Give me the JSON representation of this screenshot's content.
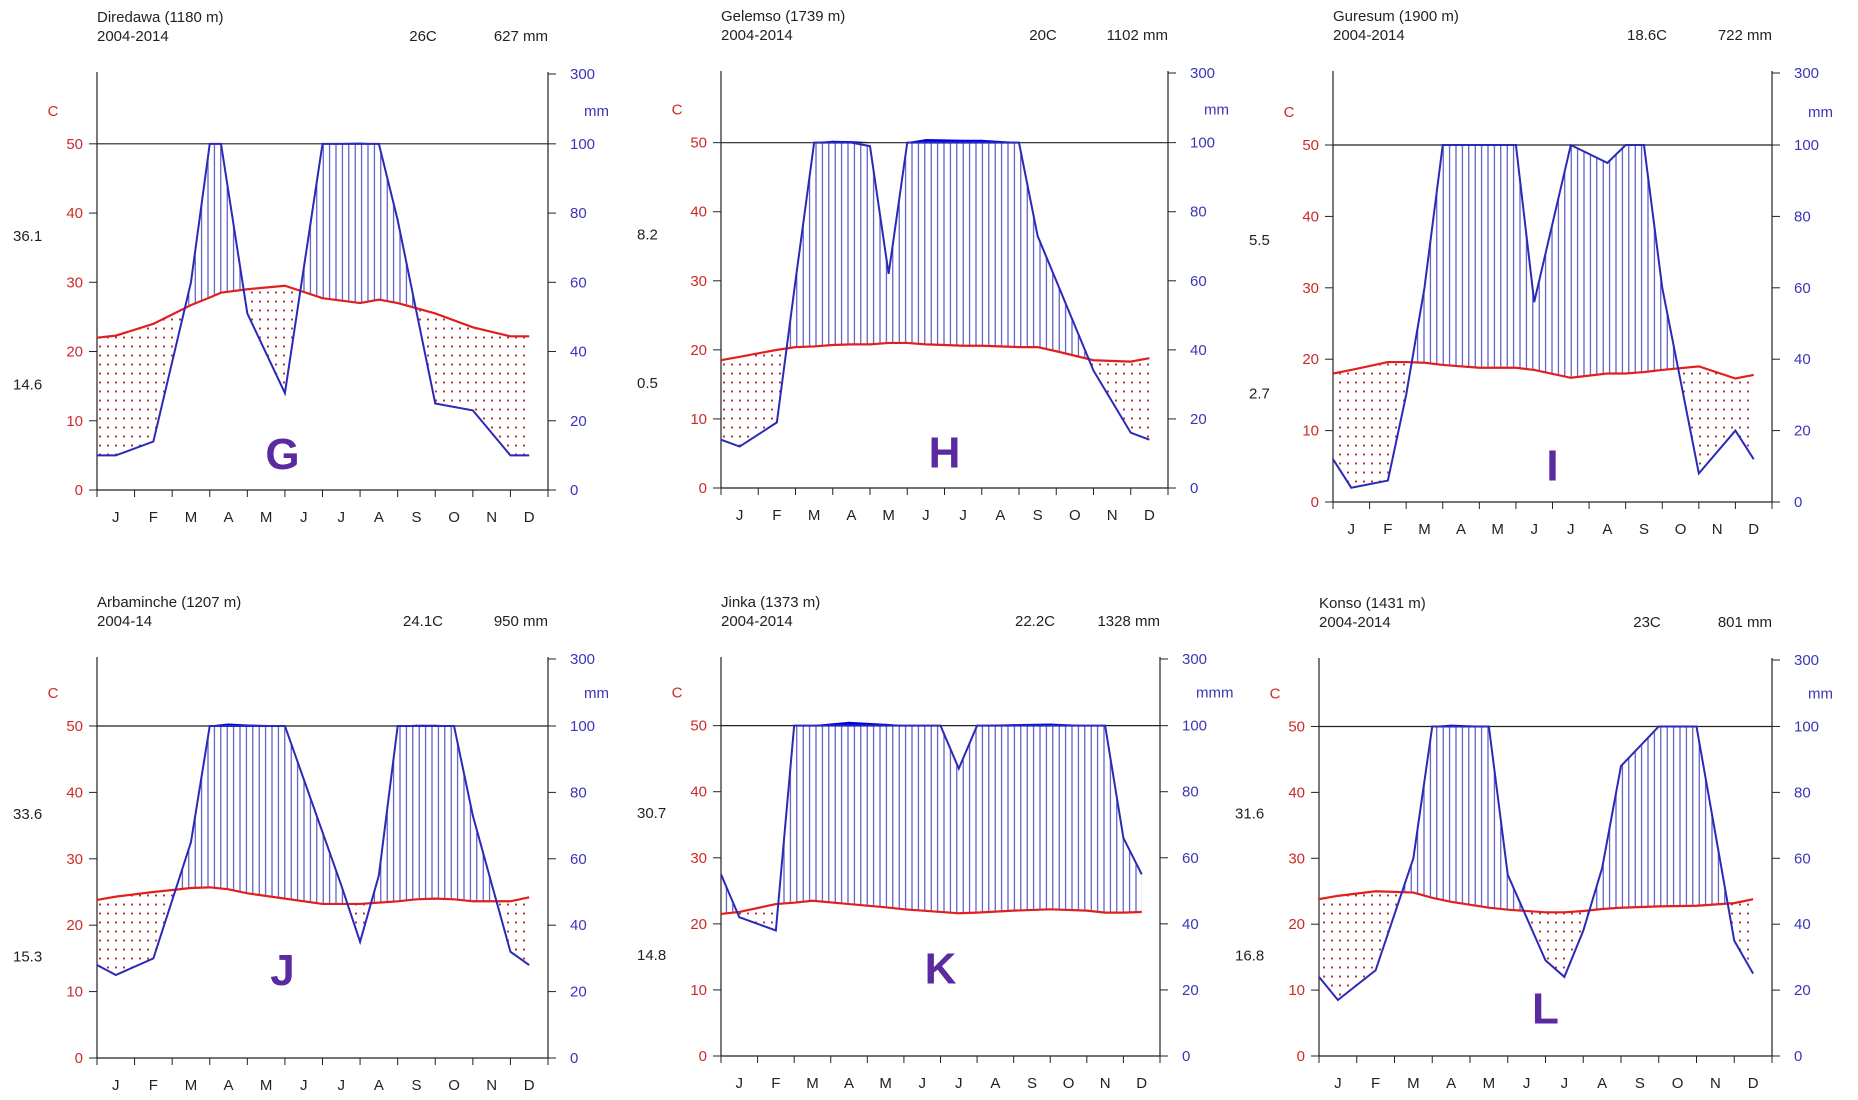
{
  "colors": {
    "temperature": "#e0201e",
    "precipitation": "#2a2ab8",
    "excess": "#0000e6",
    "dry_dots": "#b0303a",
    "wet_hatch": "#3535b0",
    "letter": "#5b2aa0"
  },
  "chart_data": [
    {
      "type": "line",
      "panel": "G",
      "station": "Diredawa  (1180 m)",
      "period": "2004-2014",
      "mean_temp": "26C",
      "annual_precip": "627 mm",
      "side_top": "36.1",
      "side_bottom": "14.6",
      "left_unit": "C",
      "right_unit": "mm",
      "left_ticks": [
        "0",
        "10",
        "20",
        "30",
        "40",
        "50"
      ],
      "right_ticks": [
        "0",
        "20",
        "40",
        "60",
        "80",
        "100",
        "300"
      ],
      "months": [
        "J",
        "F",
        "M",
        "A",
        "M",
        "J",
        "J",
        "A",
        "S",
        "O",
        "N",
        "D"
      ],
      "x": [
        0,
        0.5,
        1.5,
        2.5,
        3,
        3.3,
        4,
        5,
        6,
        7,
        7.5,
        8,
        9,
        10,
        11,
        11.5
      ],
      "temperature": [
        22,
        22.3,
        24,
        26.7,
        27.8,
        28.5,
        29,
        29.5,
        27.7,
        27,
        27.5,
        27,
        25.5,
        23.5,
        22.2,
        22.2
      ],
      "precipitation": [
        10,
        10,
        14,
        60,
        100,
        100,
        51,
        28,
        100,
        102,
        100,
        78,
        25,
        23,
        10,
        10
      ]
    },
    {
      "type": "line",
      "panel": "H",
      "station": "Gelemso  (1739 m)",
      "period": "2004-2014",
      "mean_temp": "20C",
      "annual_precip": "1102 mm",
      "side_top": "8.2",
      "side_bottom": "0.5",
      "left_unit": "C",
      "right_unit": "mm",
      "left_ticks": [
        "0",
        "10",
        "20",
        "30",
        "40",
        "50"
      ],
      "right_ticks": [
        "0",
        "20",
        "40",
        "60",
        "80",
        "100",
        "300"
      ],
      "months": [
        "J",
        "F",
        "M",
        "A",
        "M",
        "J",
        "J",
        "A",
        "S",
        "O",
        "N",
        "D"
      ],
      "x": [
        0,
        0.5,
        1.5,
        2,
        2.5,
        3,
        3.5,
        4,
        4.5,
        5,
        5.5,
        6,
        6.5,
        7,
        8,
        8.5,
        9,
        10,
        10,
        11,
        11.5
      ],
      "temperature": [
        18.5,
        19,
        20,
        20.4,
        20.5,
        20.7,
        20.8,
        20.8,
        21,
        21,
        20.8,
        20.7,
        20.6,
        20.6,
        20.4,
        20.4,
        19.8,
        18.5,
        18.5,
        18.3,
        18.8
      ],
      "precipitation": [
        14,
        12,
        19,
        60,
        100,
        104,
        103,
        99,
        62,
        100,
        109,
        108,
        107,
        107,
        100,
        73,
        60,
        34,
        34,
        16,
        14
      ]
    },
    {
      "type": "line",
      "panel": "I",
      "station": "Guresum  (1900 m)",
      "period": "2004-2014",
      "mean_temp": "18.6C",
      "annual_precip": "722 mm",
      "side_top": "5.5",
      "side_bottom": "2.7",
      "left_unit": "C",
      "right_unit": "mm",
      "left_ticks": [
        "0",
        "10",
        "20",
        "30",
        "40",
        "50"
      ],
      "right_ticks": [
        "0",
        "20",
        "40",
        "60",
        "80",
        "100",
        "300"
      ],
      "months": [
        "J",
        "F",
        "M",
        "A",
        "M",
        "J",
        "J",
        "A",
        "S",
        "O",
        "N",
        "D"
      ],
      "x": [
        0,
        0.5,
        1.5,
        2,
        2.5,
        3,
        4,
        5,
        5.5,
        6.5,
        7.5,
        8,
        8.5,
        9,
        10,
        11,
        11.5
      ],
      "temperature": [
        18,
        18.5,
        19.6,
        19.6,
        19.5,
        19.2,
        18.8,
        18.8,
        18.5,
        17.4,
        18,
        18,
        18.2,
        18.5,
        19,
        17.3,
        17.8
      ],
      "precipitation": [
        12,
        4,
        6,
        30,
        60,
        100,
        101,
        100,
        56,
        100,
        95,
        100,
        100,
        60,
        8,
        20,
        12
      ]
    },
    {
      "type": "line",
      "panel": "J",
      "station": "Arbaminche  (1207 m)",
      "period": "2004-14",
      "mean_temp": "24.1C",
      "annual_precip": "950 mm",
      "side_top": "33.6",
      "side_bottom": "15.3",
      "left_unit": "C",
      "right_unit": "mm",
      "left_ticks": [
        "0",
        "10",
        "20",
        "30",
        "40",
        "50"
      ],
      "right_ticks": [
        "0",
        "20",
        "40",
        "60",
        "80",
        "100",
        "300"
      ],
      "months": [
        "J",
        "F",
        "M",
        "A",
        "M",
        "J",
        "J",
        "A",
        "S",
        "O",
        "N",
        "D"
      ],
      "x": [
        0,
        0.5,
        1.5,
        2.5,
        3,
        3.5,
        4,
        5,
        6,
        6.5,
        7,
        7.5,
        8,
        8.5,
        9,
        9.5,
        10,
        11,
        11.5
      ],
      "temperature": [
        23.8,
        24.3,
        25,
        25.6,
        25.7,
        25.4,
        24.8,
        24,
        23.2,
        23.2,
        23.2,
        23.4,
        23.6,
        23.9,
        24,
        23.9,
        23.6,
        23.6,
        24.2
      ],
      "precipitation": [
        28,
        25,
        30,
        65,
        100,
        106,
        103,
        100,
        68,
        52,
        35,
        55,
        100,
        102,
        102,
        100,
        73,
        32,
        28
      ]
    },
    {
      "type": "line",
      "panel": "K",
      "station": "Jinka  (1373 m)",
      "period": "2004-2014",
      "mean_temp": "22.2C",
      "annual_precip": "1328 mm",
      "side_top": "30.7",
      "side_bottom": "14.8",
      "left_unit": "C",
      "right_unit": "mmm",
      "left_ticks": [
        "0",
        "10",
        "20",
        "30",
        "40",
        "50"
      ],
      "right_ticks": [
        "0",
        "20",
        "40",
        "60",
        "80",
        "100",
        "300"
      ],
      "months": [
        "J",
        "F",
        "M",
        "A",
        "M",
        "J",
        "J",
        "A",
        "S",
        "O",
        "N",
        "D"
      ],
      "x": [
        0,
        0.5,
        1.5,
        2,
        2.5,
        3.5,
        4.5,
        5,
        6,
        6.5,
        7,
        8,
        9,
        10,
        10.5,
        11,
        11.5
      ],
      "temperature": [
        21.5,
        21.8,
        23,
        23.2,
        23.5,
        23,
        22.5,
        22.2,
        21.8,
        21.6,
        21.7,
        22,
        22.2,
        22,
        21.7,
        21.7,
        21.8
      ],
      "precipitation": [
        55,
        42,
        38,
        100,
        100,
        110,
        104,
        100,
        100,
        87,
        100,
        103,
        105,
        100,
        100,
        66,
        55
      ]
    },
    {
      "type": "line",
      "panel": "L",
      "station": "Konso (1431 m)",
      "period": "2004-2014",
      "mean_temp": "23C",
      "annual_precip": "801 mm",
      "side_top": "31.6",
      "side_bottom": "16.8",
      "left_unit": "C",
      "right_unit": "mm",
      "left_ticks": [
        "0",
        "10",
        "20",
        "30",
        "40",
        "50"
      ],
      "right_ticks": [
        "0",
        "20",
        "40",
        "60",
        "80",
        "100",
        "300"
      ],
      "months": [
        "J",
        "F",
        "M",
        "A",
        "M",
        "J",
        "J",
        "A",
        "S",
        "O",
        "N",
        "D"
      ],
      "x": [
        0,
        0.5,
        1.5,
        2.5,
        3,
        3.5,
        4.5,
        5,
        6,
        6.5,
        7,
        7.5,
        8,
        9,
        10,
        11,
        11.5
      ],
      "temperature": [
        23.8,
        24.3,
        25,
        24.8,
        24,
        23.4,
        22.5,
        22.2,
        21.8,
        21.8,
        22,
        22.3,
        22.5,
        22.7,
        22.8,
        23.2,
        23.8
      ],
      "precipitation": [
        24,
        17,
        26,
        60,
        100,
        104,
        100,
        55,
        29,
        24,
        38,
        57,
        88,
        100,
        100,
        35,
        25
      ]
    }
  ]
}
